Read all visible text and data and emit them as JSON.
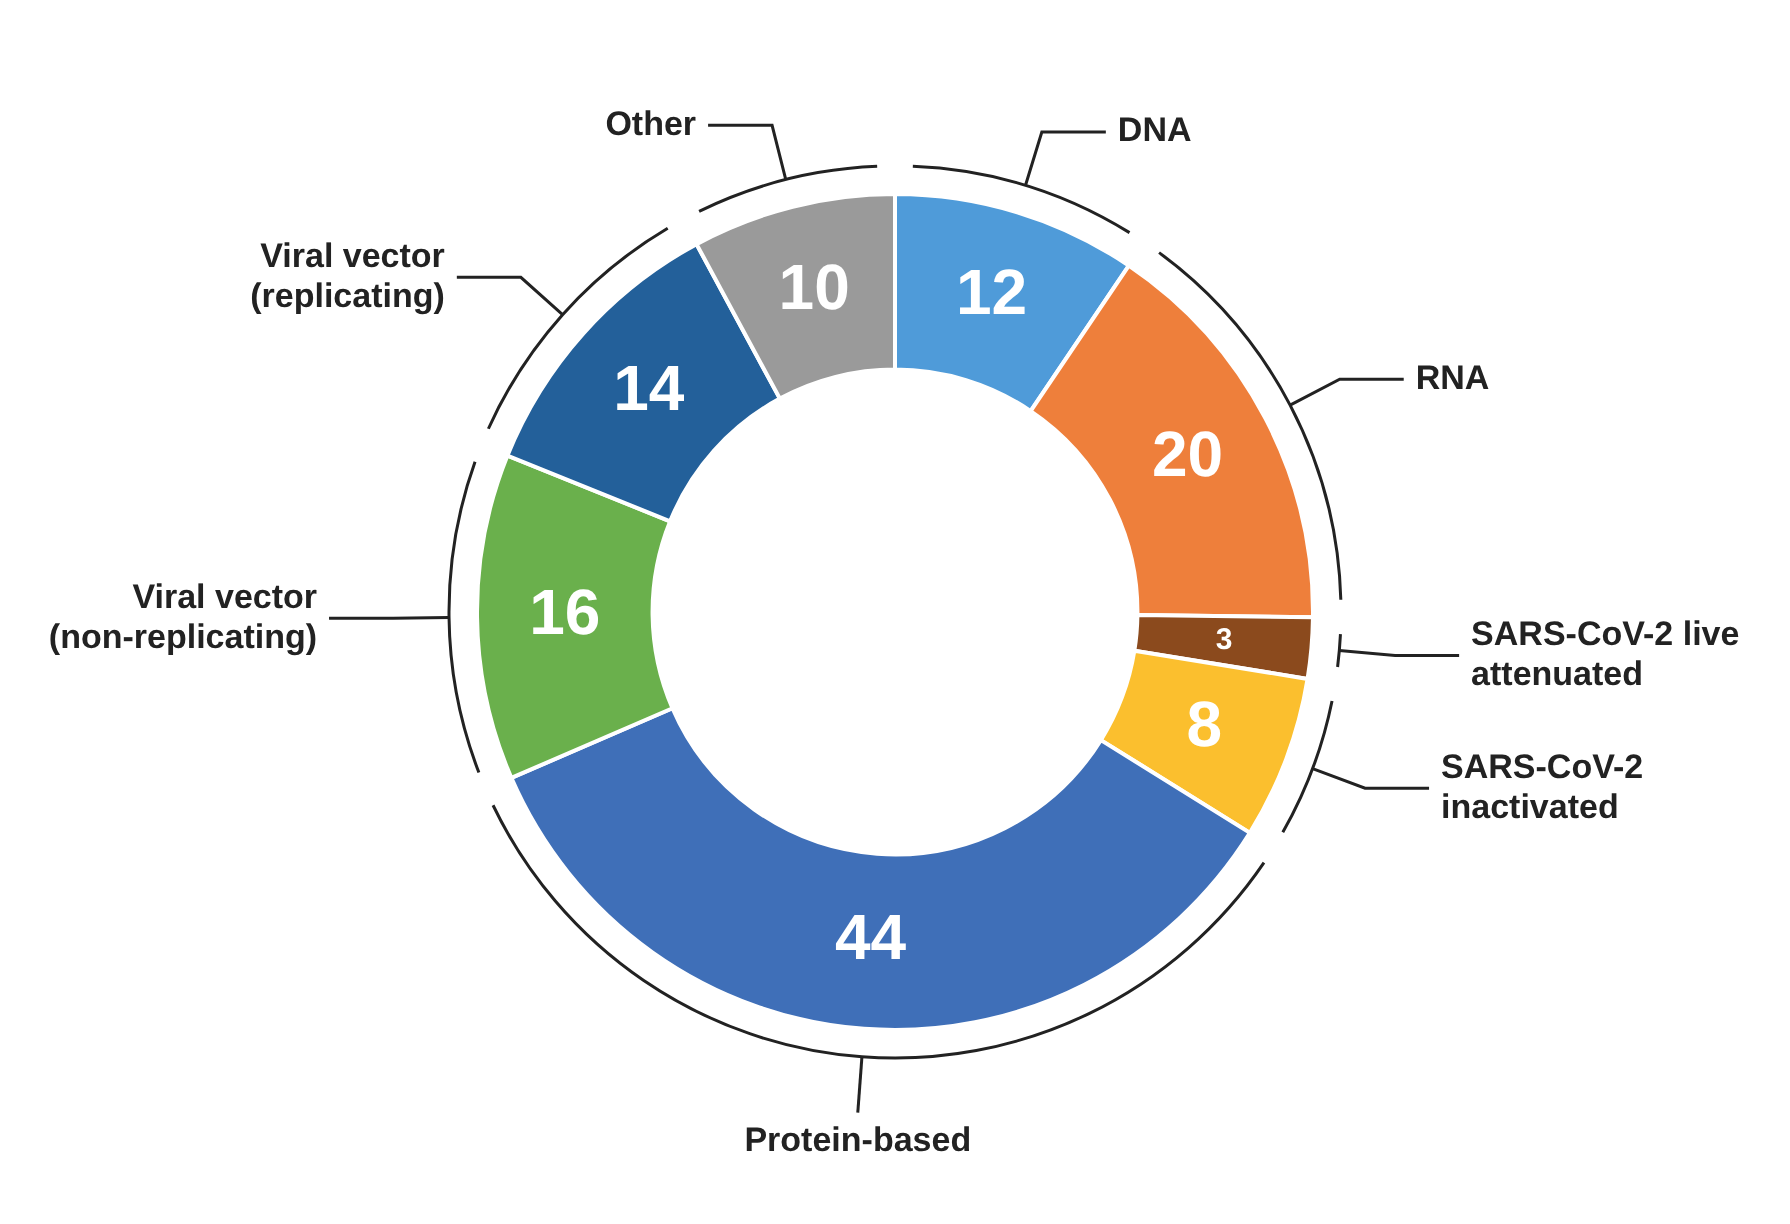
{
  "chart_data": {
    "type": "donut",
    "categories": [
      "DNA",
      "RNA",
      "SARS-CoV-2 live attenuated",
      "SARS-CoV-2 inactivated",
      "Protein-based",
      "Viral vector (non-replicating)",
      "Viral vector (replicating)",
      "Other"
    ],
    "values": [
      12,
      20,
      3,
      8,
      44,
      16,
      14,
      10
    ],
    "colors": [
      "#4f9bd9",
      "#ee7f3b",
      "#8b4a1d",
      "#fbbf2e",
      "#3f6fb8",
      "#6ab04c",
      "#23609a",
      "#9a9a9a"
    ],
    "data_labels": true,
    "legend": false
  }
}
